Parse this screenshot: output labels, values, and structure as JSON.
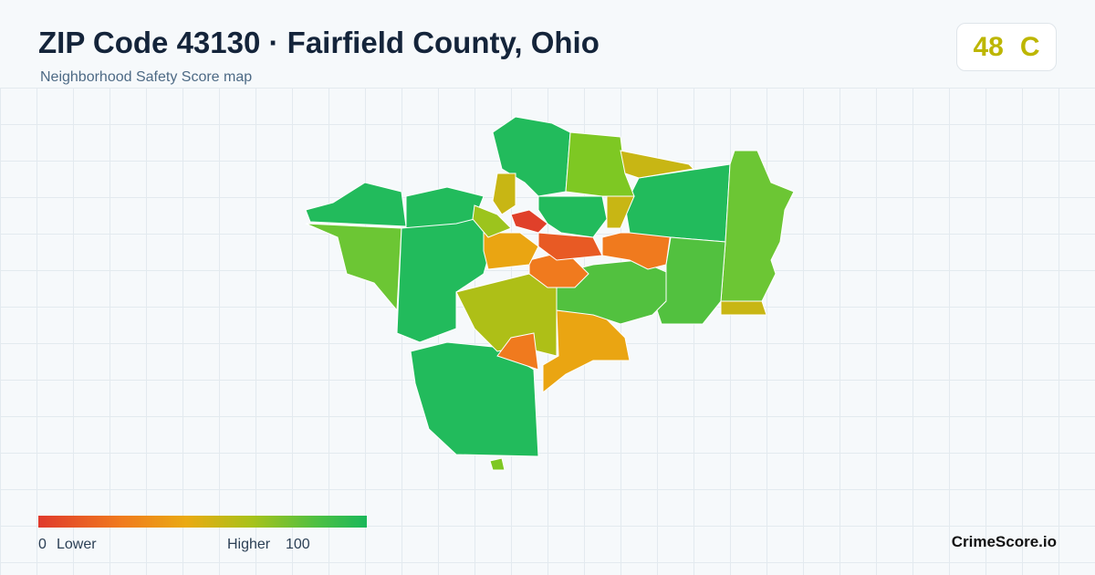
{
  "header": {
    "title": "ZIP Code 43130 · Fairfield County, Ohio",
    "subtitle": "Neighborhood Safety Score map"
  },
  "score": {
    "value": 48,
    "grade": "C"
  },
  "legend": {
    "min": 0,
    "min_label": "Lower",
    "max_label": "Higher",
    "max": 100
  },
  "brand": "CrimeScore.io"
}
